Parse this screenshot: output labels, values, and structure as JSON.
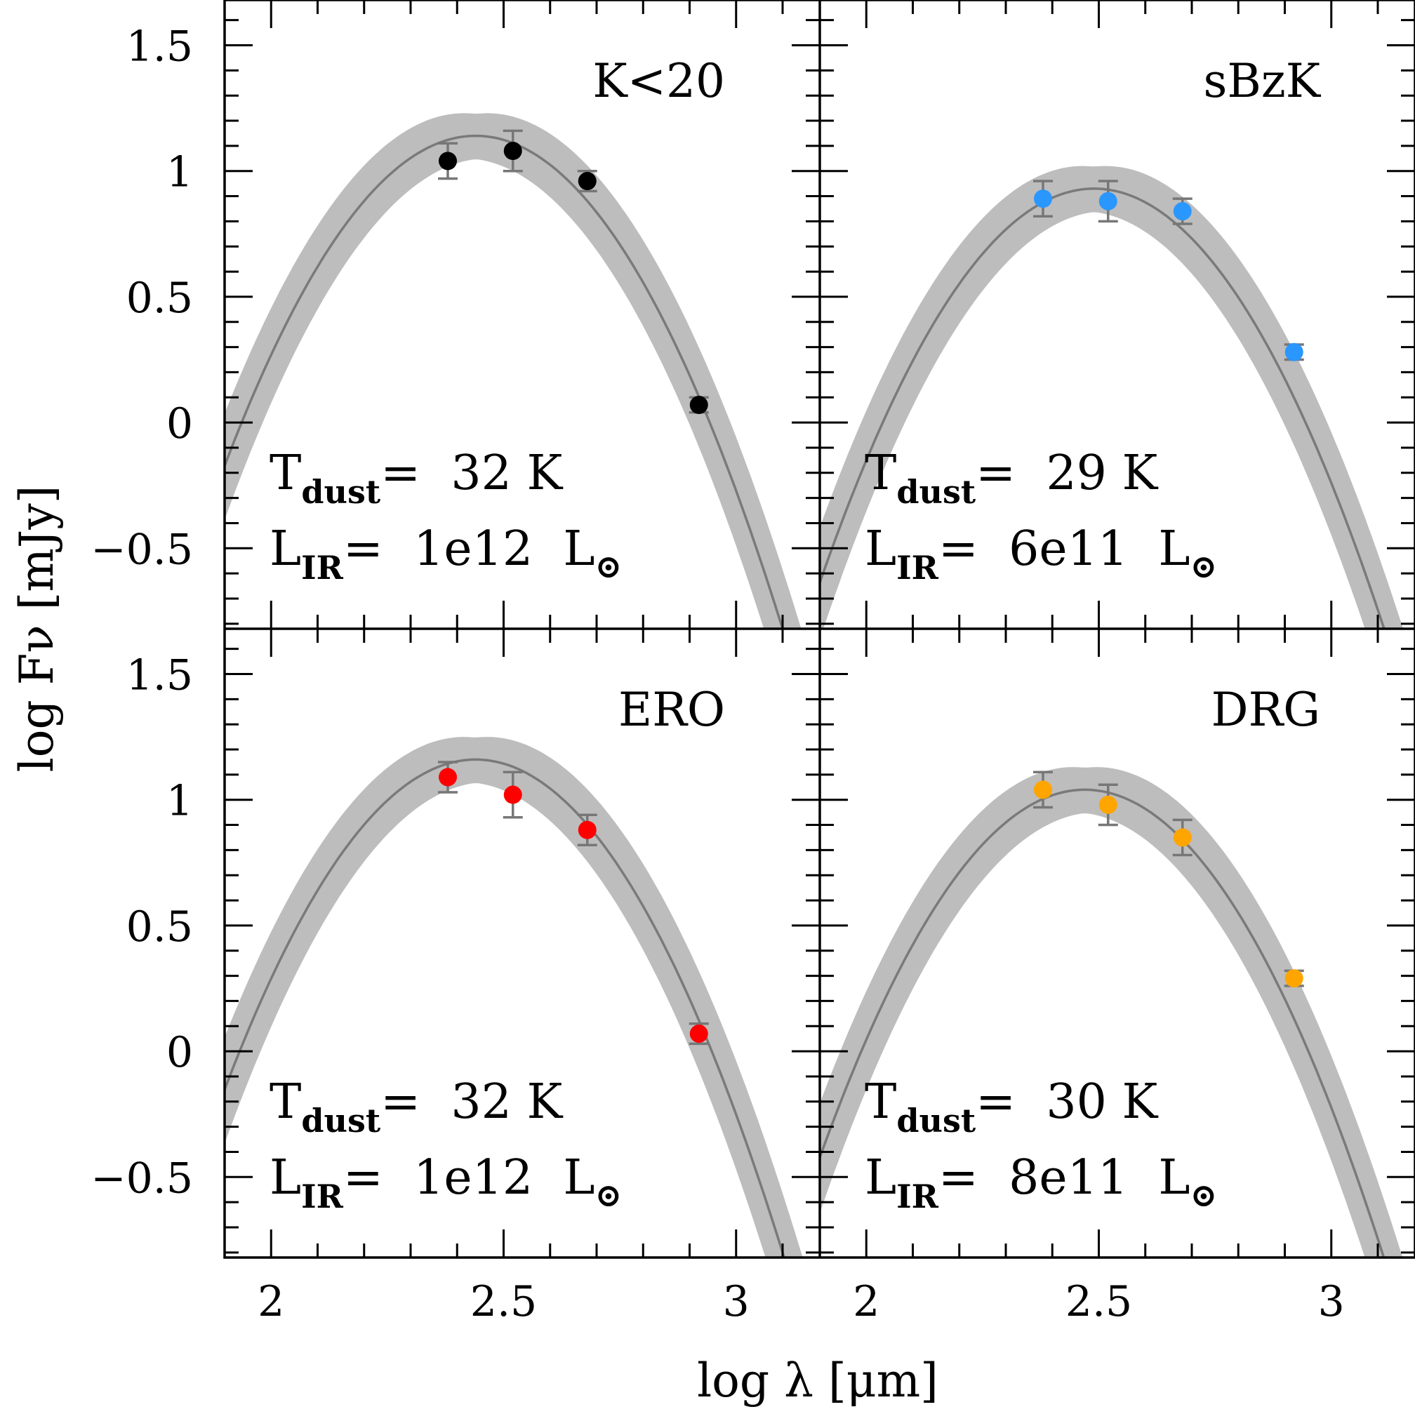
{
  "chart_data": {
    "type": "scatter",
    "xlabel": "log λ [μm]",
    "ylabel": "log Fν [mJy]",
    "xlim": [
      1.9,
      3.18
    ],
    "ylim": [
      -0.82,
      1.68
    ],
    "x_ticks": [
      "2",
      "2.5",
      "3"
    ],
    "y_ticks": [
      "−0.5",
      "0",
      "0.5",
      "1",
      "1.5"
    ],
    "grid": false,
    "colors": {
      "band": "#bdbdbd",
      "fit_line": "#7a7a7a",
      "error_bar": "#777777"
    },
    "panels": [
      {
        "label": "K<20",
        "marker_color": "#000000",
        "tdust_value": "32 K",
        "lir_value": "1e12",
        "points": [
          {
            "x": 2.38,
            "y": 1.04,
            "err": 0.07
          },
          {
            "x": 2.52,
            "y": 1.08,
            "err": 0.08
          },
          {
            "x": 2.68,
            "y": 0.96,
            "err": 0.04
          },
          {
            "x": 2.92,
            "y": 0.07,
            "err": 0.03
          }
        ],
        "fit": {
          "peak_x": 2.44,
          "peak_y": 1.14
        }
      },
      {
        "label": "sBzK",
        "marker_color": "#2a97ff",
        "tdust_value": "29 K",
        "lir_value": "6e11",
        "points": [
          {
            "x": 2.38,
            "y": 0.89,
            "err": 0.07
          },
          {
            "x": 2.52,
            "y": 0.88,
            "err": 0.08
          },
          {
            "x": 2.68,
            "y": 0.84,
            "err": 0.05
          },
          {
            "x": 2.92,
            "y": 0.28,
            "err": 0.03
          }
        ],
        "fit": {
          "peak_x": 2.49,
          "peak_y": 0.93
        }
      },
      {
        "label": "ERO",
        "marker_color": "#ff0000",
        "tdust_value": "32 K",
        "lir_value": "1e12",
        "points": [
          {
            "x": 2.38,
            "y": 1.09,
            "err": 0.06
          },
          {
            "x": 2.52,
            "y": 1.02,
            "err": 0.09
          },
          {
            "x": 2.68,
            "y": 0.88,
            "err": 0.06
          },
          {
            "x": 2.92,
            "y": 0.07,
            "err": 0.04
          }
        ],
        "fit": {
          "peak_x": 2.44,
          "peak_y": 1.16
        }
      },
      {
        "label": "DRG",
        "marker_color": "#ffa500",
        "tdust_value": "30 K",
        "lir_value": "8e11",
        "points": [
          {
            "x": 2.38,
            "y": 1.04,
            "err": 0.07
          },
          {
            "x": 2.52,
            "y": 0.98,
            "err": 0.08
          },
          {
            "x": 2.68,
            "y": 0.85,
            "err": 0.07
          },
          {
            "x": 2.92,
            "y": 0.29,
            "err": 0.03
          }
        ],
        "fit": {
          "peak_x": 2.47,
          "peak_y": 1.04
        }
      }
    ]
  }
}
